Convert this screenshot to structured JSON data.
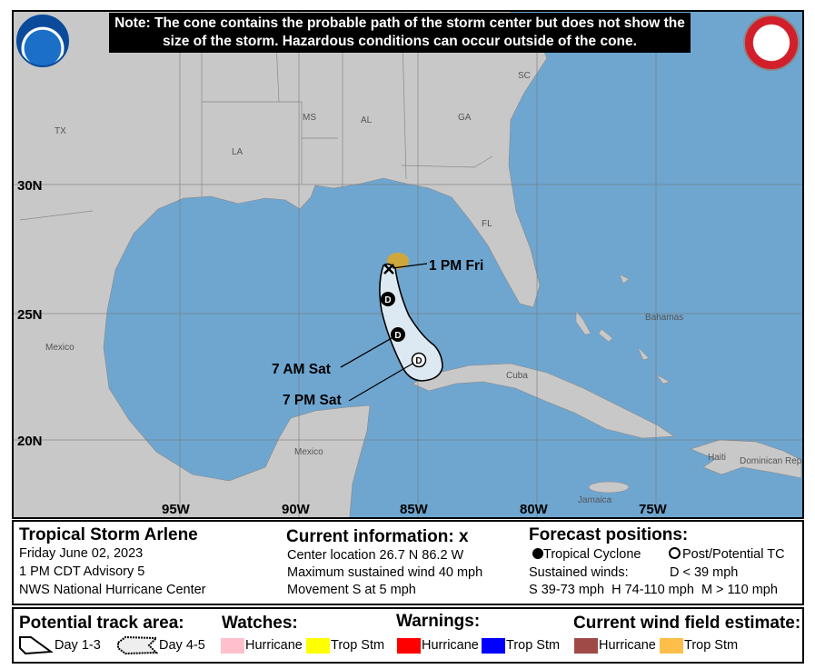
{
  "note": "Note: The cone contains the probable path of the storm center but does not show the size of the storm. Hazardous conditions can occur outside of the cone.",
  "logos": {
    "left": "NOAA",
    "right": "NATIONAL WEATHER SERVICE"
  },
  "map": {
    "lat_labels": [
      "30N",
      "25N",
      "20N"
    ],
    "lon_labels": [
      "95W",
      "90W",
      "85W",
      "80W",
      "75W"
    ],
    "place_labels": [
      "TX",
      "LA",
      "MS",
      "AL",
      "GA",
      "SC",
      "FL",
      "Mexico",
      "Mexico",
      "Cuba",
      "Bahamas",
      "Jamaica",
      "Haiti",
      "Dominican Republic"
    ],
    "track_labels": [
      "1 PM Fri",
      "7 AM Sat",
      "7 PM Sat"
    ],
    "points": [
      {
        "type": "current",
        "symbol": "X",
        "lat": 26.7,
        "lon": -86.2
      },
      {
        "type": "tropical-cyclone",
        "symbol": "D"
      },
      {
        "type": "tropical-cyclone",
        "symbol": "D"
      },
      {
        "type": "post-potential",
        "symbol": "D"
      }
    ],
    "colors": {
      "ocean": "#6fa6d0",
      "land": "#c8c8c8",
      "cone": "#dde9f2",
      "trop_stm_wind": "#d9a62b"
    }
  },
  "info": {
    "storm_name": "Tropical Storm Arlene",
    "date": "Friday June 02, 2023",
    "advisory": "1 PM CDT Advisory 5",
    "center": "NWS National Hurricane Center",
    "current_title": "Current information:",
    "current_symbol": "x",
    "location": "Center location 26.7 N 86.2 W",
    "wind": "Maximum sustained wind 40 mph",
    "movement": "Movement S at 5 mph",
    "forecast_title": "Forecast positions:",
    "tc_label": "Tropical Cyclone",
    "post_label": "Post/Potential TC",
    "sustained": "Sustained winds:",
    "d_label": "D < 39 mph",
    "shm_label": "S 39-73 mph  H 74-110 mph  M > 110 mph"
  },
  "legend": {
    "track_title": "Potential track area:",
    "day13": "Day 1-3",
    "day45": "Day 4-5",
    "watches_title": "Watches:",
    "warnings_title": "Warnings:",
    "wind_title": "Current wind field estimate:",
    "hurricane": "Hurricane",
    "tropstm": "Trop Stm",
    "colors": {
      "watch_hurricane": "#ffc0cb",
      "watch_tropstm": "#ffff00",
      "warn_hurricane": "#ff0000",
      "warn_tropstm": "#0000ff",
      "wind_hurricane": "#a04a48",
      "wind_tropstm": "#ffbe4a"
    }
  }
}
